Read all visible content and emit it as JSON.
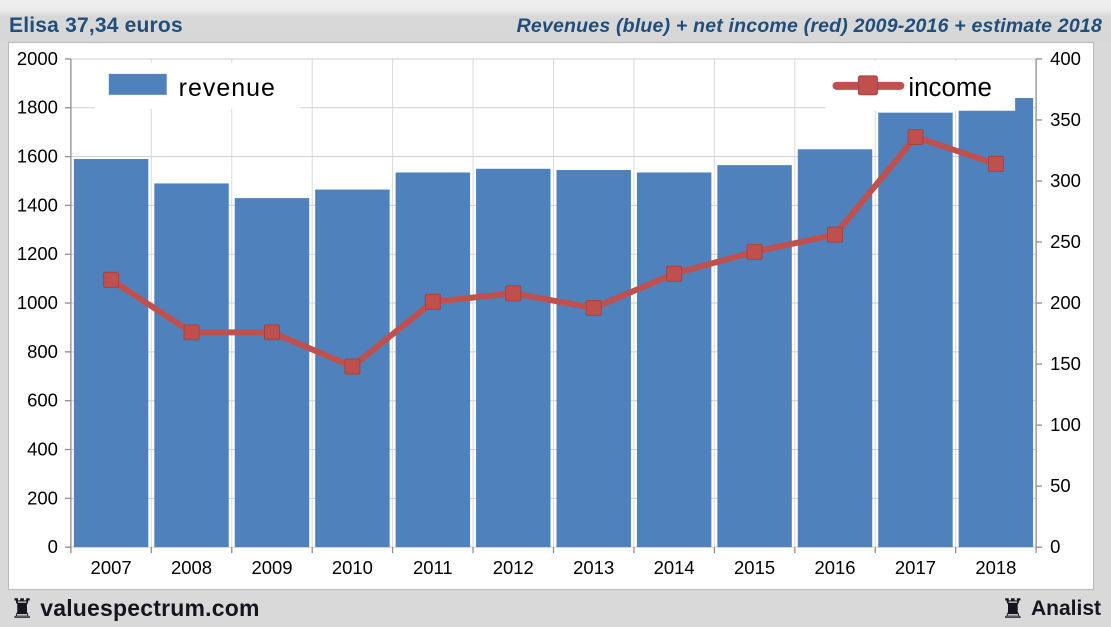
{
  "header": {
    "left_title": "Elisa 37,34 euros",
    "right_title": "Revenues (blue) + net income (red) 2009-2016 + estimate 2018"
  },
  "footer": {
    "brand": "valuespectrum.com",
    "brand_icon": "rook-icon",
    "right_label": "Analist",
    "right_icon": "rook-icon"
  },
  "colors": {
    "bar_blue": "#4f81bd",
    "line_red": "#c0504d",
    "title_blue": "#1f4e7a",
    "page_gray": "#d9d9d9",
    "footer_text": "#15151f",
    "gridline": "#cfcfcf",
    "axis_line": "#8e8e8e"
  },
  "chart_data": {
    "type": "bar",
    "subtype": "combo-bar-line-dual-axis",
    "categories": [
      "2007",
      "2008",
      "2009",
      "2010",
      "2011",
      "2012",
      "2013",
      "2014",
      "2015",
      "2016",
      "2017",
      "2018"
    ],
    "series": [
      {
        "name": "revenue",
        "type": "bar",
        "axis": "left",
        "color": "#4f81bd",
        "values": [
          1590,
          1490,
          1430,
          1465,
          1535,
          1550,
          1545,
          1535,
          1565,
          1630,
          1780,
          1840
        ]
      },
      {
        "name": "income",
        "type": "line",
        "axis": "right",
        "color": "#c0504d",
        "marker": "square",
        "values": [
          219,
          176,
          176,
          148,
          201,
          208,
          196,
          224,
          242,
          256,
          336,
          314
        ]
      }
    ],
    "left_axis": {
      "min": 0,
      "max": 2000,
      "step": 200,
      "tick_labels": [
        "0",
        "200",
        "400",
        "600",
        "800",
        "1000",
        "1200",
        "1400",
        "1600",
        "1800",
        "2000"
      ]
    },
    "right_axis": {
      "min": 0,
      "max": 400,
      "step": 50,
      "tick_labels": [
        "0",
        "50",
        "100",
        "150",
        "200",
        "250",
        "300",
        "350",
        "400"
      ]
    },
    "grid": true,
    "legend": [
      {
        "label": "revenue",
        "position": "top-left"
      },
      {
        "label": "income",
        "position": "top-right"
      }
    ]
  }
}
